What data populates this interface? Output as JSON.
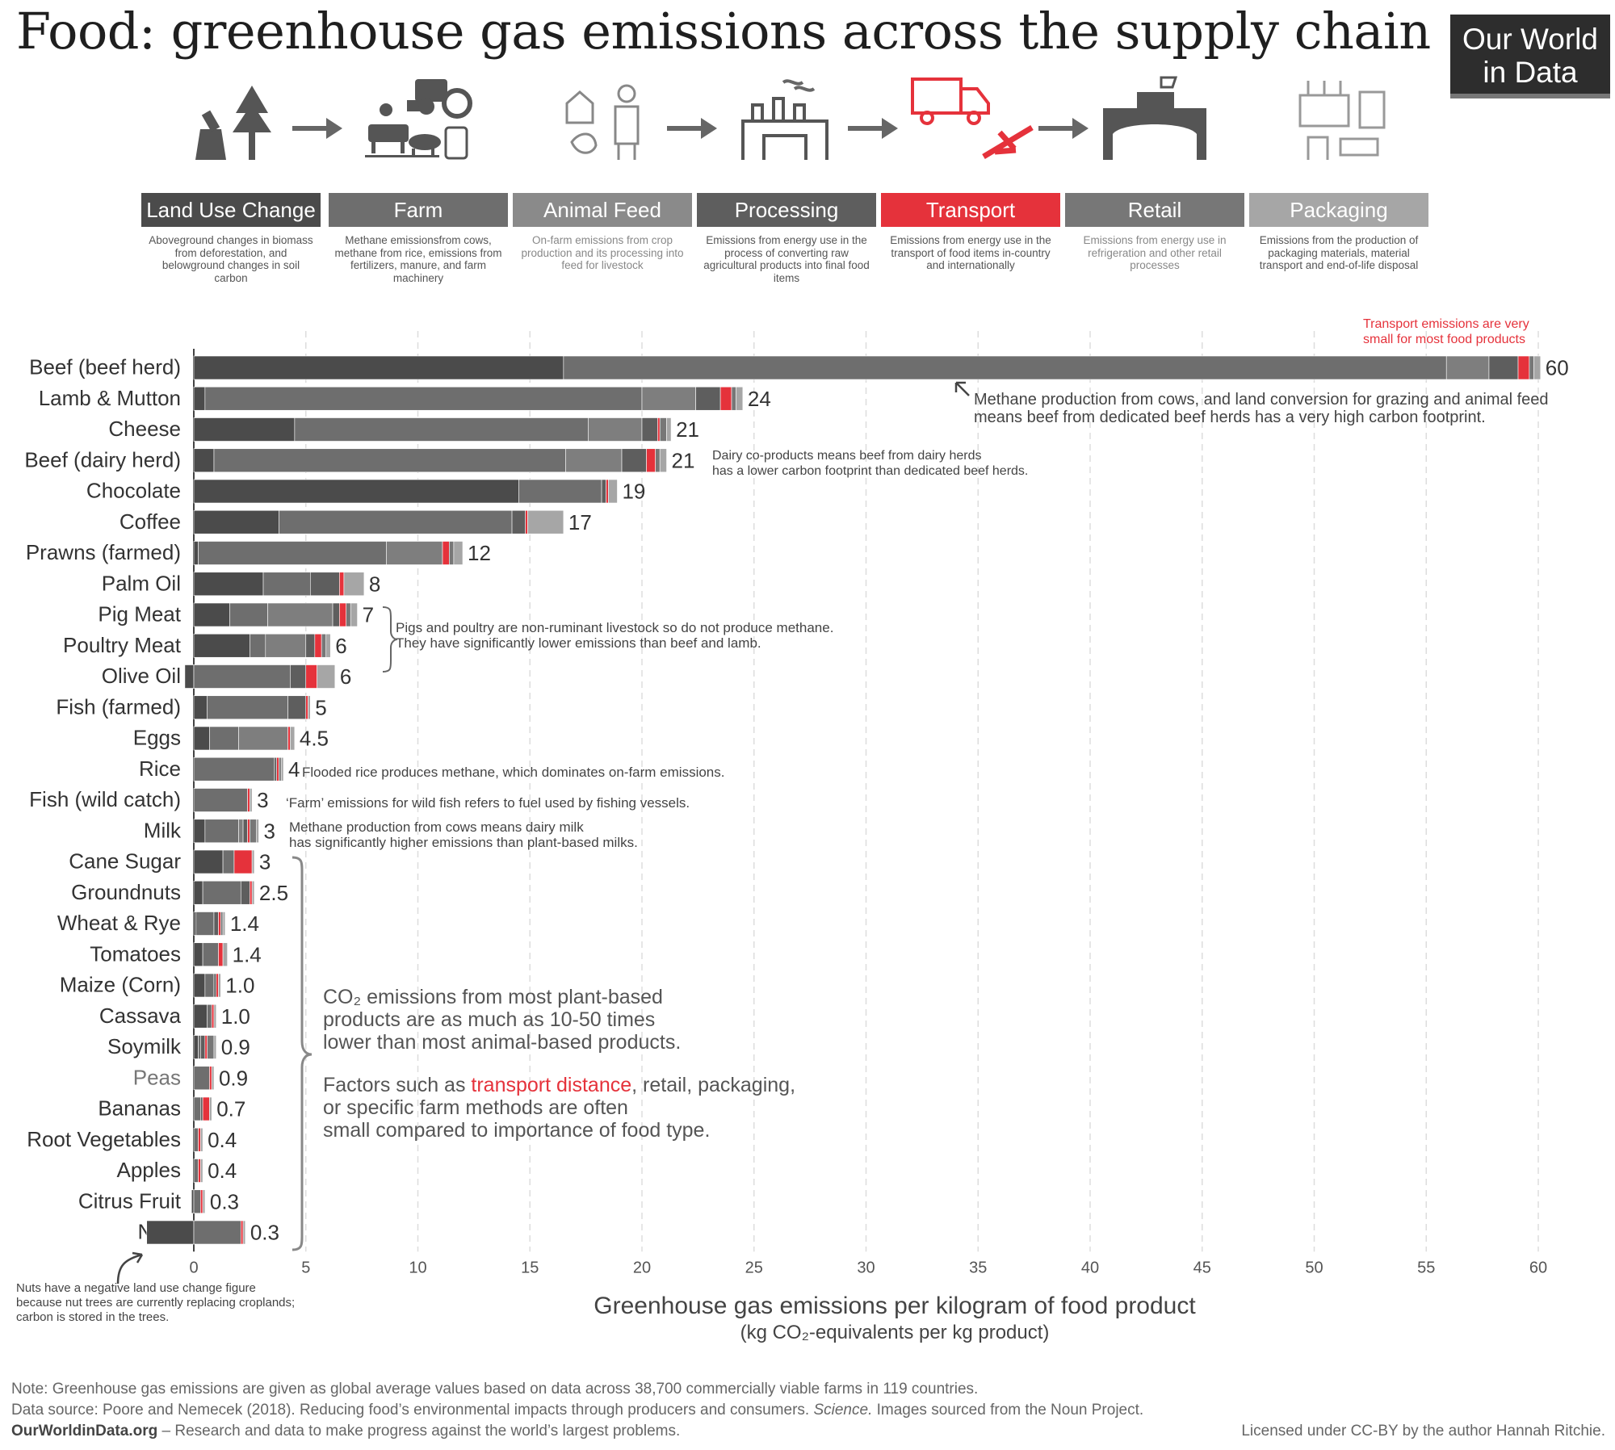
{
  "header": {
    "title": "Food: greenhouse gas emissions across the supply chain",
    "logo_line1": "Our World",
    "logo_line2": "in Data"
  },
  "stages": [
    {
      "label": "Land Use Change",
      "color": "#4b4b4b",
      "desc": "Aboveground changes in biomass from deforestation, and belowground changes in soil carbon",
      "icon": "tree-stump-icon"
    },
    {
      "label": "Farm",
      "color": "#6e6e6e",
      "desc": "Methane emissionsfrom cows, methane from rice, emissions from fertilizers, manure, and farm machinery",
      "icon": "farm-animals-tractor-icon"
    },
    {
      "label": "Animal Feed",
      "color": "#8a8a8a",
      "desc": "On-farm emissions from crop production and its processing into feed for livestock",
      "icon": "farmer-barn-icon"
    },
    {
      "label": "Processing",
      "color": "#5e5e5e",
      "desc": "Emissions from energy use in the process of converting raw agricultural products into final food items",
      "icon": "factory-icon"
    },
    {
      "label": "Transport",
      "color": "#e5323b",
      "desc": "Emissions from energy use in the transport of food items in-country and internationally",
      "icon": "truck-plane-icon"
    },
    {
      "label": "Retail",
      "color": "#777777",
      "desc": "Emissions from energy use in refrigeration and other retail processes",
      "icon": "store-icon"
    },
    {
      "label": "Packaging",
      "color": "#a6a6a6",
      "desc": "Emissions from the production of packaging materials, material transport and end-of-life disposal",
      "icon": "packaging-icon"
    }
  ],
  "chart_data": {
    "type": "bar",
    "orientation": "horizontal",
    "stacked": true,
    "xlabel": "Greenhouse gas emissions per kilogram of food product",
    "xlabel_sub": "(kg CO₂-equivalents per kg product)",
    "xlim": [
      -2,
      60
    ],
    "xticks": [
      0,
      5,
      10,
      15,
      20,
      25,
      30,
      35,
      40,
      45,
      50,
      55,
      60
    ],
    "series_names": [
      "Land Use Change",
      "Farm",
      "Animal Feed",
      "Processing",
      "Transport",
      "Retail",
      "Packaging"
    ],
    "series_colors": [
      "#4b4b4b",
      "#6e6e6e",
      "#7e7e7e",
      "#5e5e5e",
      "#e5323b",
      "#777777",
      "#a6a6a6"
    ],
    "categories": [
      "Beef (beef herd)",
      "Lamb & Mutton",
      "Cheese",
      "Beef (dairy herd)",
      "Chocolate",
      "Coffee",
      "Prawns (farmed)",
      "Palm Oil",
      "Pig Meat",
      "Poultry Meat",
      "Olive Oil",
      "Fish (farmed)",
      "Eggs",
      "Rice",
      "Fish (wild catch)",
      "Milk",
      "Cane Sugar",
      "Groundnuts",
      "Wheat & Rye",
      "Tomatoes",
      "Maize (Corn)",
      "Cassava",
      "Soymilk",
      "Peas",
      "Bananas",
      "Root Vegetables",
      "Apples",
      "Citrus Fruit",
      "Nuts"
    ],
    "labels": [
      "60",
      "24",
      "21",
      "21",
      "19",
      "17",
      "12",
      "8",
      "7",
      "6",
      "6",
      "5",
      "4.5",
      "4",
      "3",
      "3",
      "3",
      "2.5",
      "1.4",
      "1.4",
      "1.0",
      "1.0",
      "0.9",
      "0.9",
      "0.7",
      "0.4",
      "0.4",
      "0.3",
      "0.3"
    ],
    "values": [
      [
        16.5,
        39.4,
        1.9,
        1.3,
        0.5,
        0.2,
        0.3
      ],
      [
        0.5,
        19.5,
        2.4,
        1.1,
        0.5,
        0.2,
        0.3
      ],
      [
        4.5,
        13.1,
        2.4,
        0.7,
        0.1,
        0.3,
        0.2
      ],
      [
        0.9,
        15.7,
        2.5,
        1.1,
        0.4,
        0.2,
        0.3
      ],
      [
        14.5,
        3.7,
        0.0,
        0.2,
        0.1,
        0.0,
        0.4
      ],
      [
        3.8,
        10.4,
        0.0,
        0.6,
        0.1,
        0.0,
        1.6
      ],
      [
        0.2,
        8.4,
        2.5,
        0.0,
        0.3,
        0.2,
        0.4
      ],
      [
        3.1,
        2.1,
        0.0,
        1.3,
        0.2,
        0.0,
        0.9
      ],
      [
        1.6,
        1.7,
        2.9,
        0.3,
        0.3,
        0.2,
        0.3
      ],
      [
        2.5,
        0.7,
        1.8,
        0.4,
        0.3,
        0.2,
        0.2
      ],
      [
        -0.4,
        4.3,
        0.0,
        0.7,
        0.5,
        0.0,
        0.8
      ],
      [
        0.6,
        3.6,
        0.0,
        0.8,
        0.1,
        0.0,
        0.1
      ],
      [
        0.7,
        1.3,
        2.2,
        0.0,
        0.1,
        0.0,
        0.2
      ],
      [
        0.0,
        3.6,
        0.0,
        0.1,
        0.1,
        0.1,
        0.1
      ],
      [
        0.0,
        2.4,
        0.0,
        0.0,
        0.1,
        0.0,
        0.1
      ],
      [
        0.5,
        1.5,
        0.2,
        0.2,
        0.1,
        0.3,
        0.1
      ],
      [
        1.3,
        0.5,
        0.0,
        0.0,
        0.8,
        0.0,
        0.1
      ],
      [
        0.4,
        1.7,
        0.0,
        0.4,
        0.1,
        0.0,
        0.1
      ],
      [
        0.1,
        0.8,
        0.0,
        0.2,
        0.1,
        0.1,
        0.1
      ],
      [
        0.4,
        0.7,
        0.0,
        0.0,
        0.2,
        0.0,
        0.2
      ],
      [
        0.5,
        0.4,
        0.0,
        0.1,
        0.1,
        0.0,
        0.1
      ],
      [
        0.6,
        0.2,
        0.0,
        0.0,
        0.1,
        0.0,
        0.1
      ],
      [
        0.2,
        0.1,
        0.0,
        0.2,
        0.1,
        0.3,
        0.1
      ],
      [
        0.0,
        0.7,
        0.0,
        0.0,
        0.1,
        0.0,
        0.1
      ],
      [
        0.0,
        0.3,
        0.0,
        0.1,
        0.3,
        0.0,
        0.1
      ],
      [
        0.0,
        0.2,
        0.0,
        0.0,
        0.1,
        0.0,
        0.1
      ],
      [
        0.0,
        0.2,
        0.0,
        0.0,
        0.1,
        0.0,
        0.1
      ],
      [
        -0.1,
        0.3,
        0.0,
        0.0,
        0.1,
        0.0,
        0.1
      ],
      [
        -2.1,
        2.1,
        0.0,
        0.0,
        0.1,
        0.0,
        0.1
      ]
    ],
    "annotations": {
      "transport_note": [
        "Transport emissions are very",
        "small for most food products"
      ],
      "beef_note": [
        "Methane production from cows, and land conversion for grazing and animal feed",
        "means beef from dedicated beef herds has a very high carbon footprint."
      ],
      "dairy_note": [
        "Dairy co-products means beef from dairy herds",
        "has a lower carbon footprint than dedicated beef herds."
      ],
      "pig_note": [
        "Pigs and poultry are non-ruminant livestock so do not produce methane.",
        "They have significantly lower emissions than beef and lamb."
      ],
      "rice_note": "Flooded rice produces methane, which dominates on-farm emissions.",
      "fish_note": "‘Farm’ emissions for wild fish refers to fuel used by fishing vessels.",
      "milk_note": [
        "Methane production from cows means dairy milk",
        "has significantly higher emissions than plant-based milks."
      ],
      "plant_note_1": [
        "CO₂ emissions from most plant-based",
        "products are as much as 10-50 times",
        "lower than most animal-based products."
      ],
      "plant_note_2_lines": [
        "Factors such as ",
        "transport distance",
        ", retail, packaging,",
        "or specific farm methods are often",
        "small compared to importance of food type."
      ],
      "nuts_note": [
        "Nuts have a negative land use change figure",
        "because nut trees are currently replacing croplands;",
        "carbon is stored in the trees."
      ]
    }
  },
  "footer": {
    "note": "Note: Greenhouse gas emissions are given as global average values based on data across 38,700 commercially viable farms in 119 countries.",
    "source_a": "Data source: Poore and Nemecek (2018). Reducing food’s environmental impacts through producers and consumers. ",
    "source_b": "Science.",
    "source_c": " Images sourced from the Noun Project.",
    "site": "OurWorldinData.org",
    "tagline": " – Research and data to make progress against the world’s largest problems.",
    "license": "Licensed under CC-BY by the author Hannah Ritchie."
  }
}
